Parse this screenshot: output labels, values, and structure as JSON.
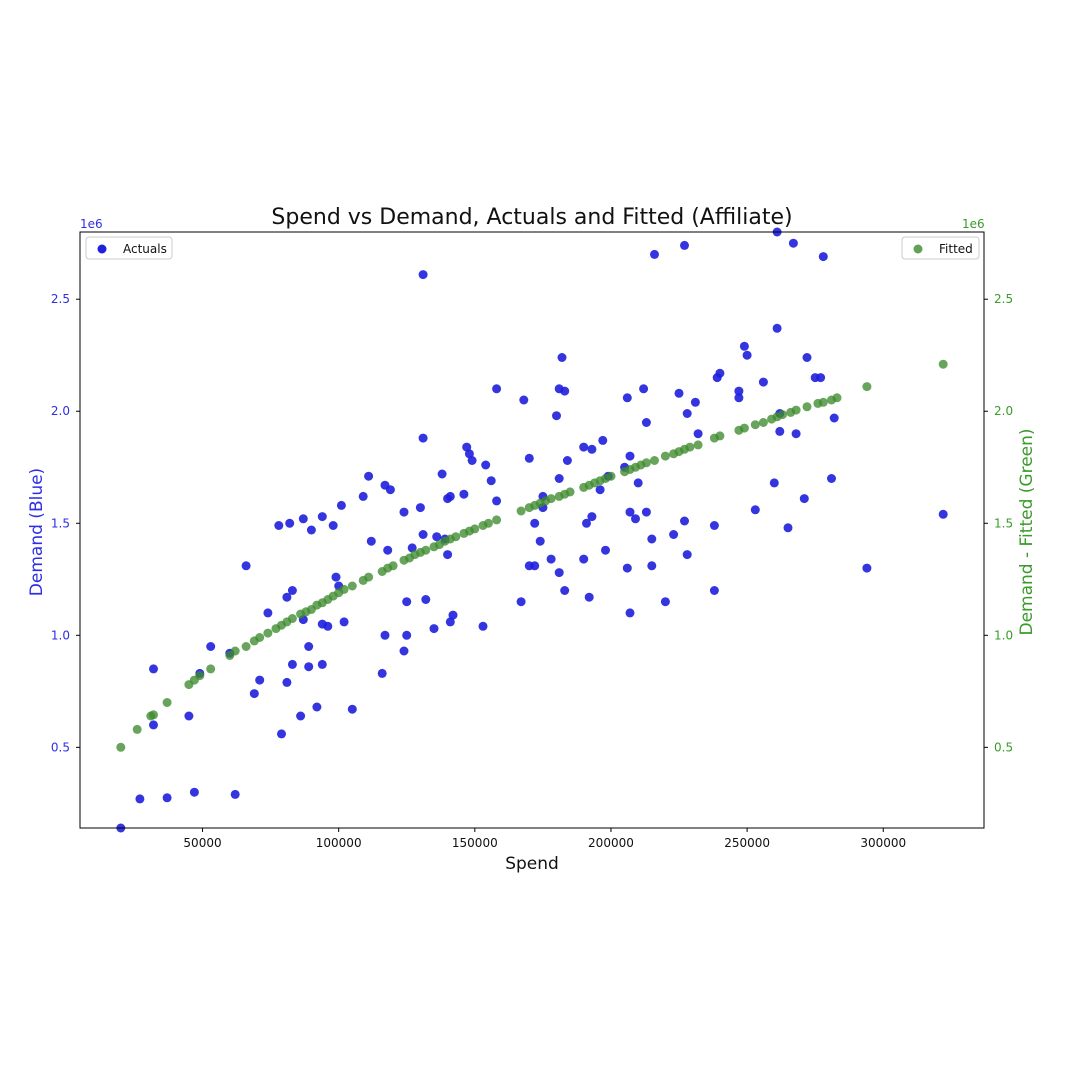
{
  "chart_data": {
    "type": "scatter",
    "title": "Spend vs Demand, Actuals and Fitted (Affiliate)",
    "xlabel": "Spend",
    "ylabel_left": "Demand (Blue)",
    "ylabel_right": "Demand - Fitted (Green)",
    "y_offset_text_left": "1e6",
    "y_offset_text_right": "1e6",
    "xlim": [
      5000,
      337000
    ],
    "ylim": [
      140000,
      2800000
    ],
    "x_ticks": [
      50000,
      100000,
      150000,
      200000,
      250000,
      300000
    ],
    "x_tick_labels": [
      "50000",
      "100000",
      "150000",
      "200000",
      "250000",
      "300000"
    ],
    "y_ticks": [
      500000,
      1000000,
      1500000,
      2000000,
      2500000
    ],
    "y_tick_labels": [
      "0.5",
      "1.0",
      "1.5",
      "2.0",
      "2.5"
    ],
    "grid": false,
    "legend_left": {
      "placement": "top-left"
    },
    "legend_right": {
      "placement": "top-right"
    },
    "colors": {
      "actuals": "#1f1fdd",
      "fitted": "#3d8a2e",
      "left_axis": "#2e2ee6",
      "right_axis": "#3a9a2a"
    },
    "series": [
      {
        "name": "Actuals",
        "axis": "left",
        "points": [
          [
            20000,
            140000
          ],
          [
            27000,
            270000
          ],
          [
            37000,
            275000
          ],
          [
            47000,
            300000
          ],
          [
            62000,
            290000
          ],
          [
            32000,
            600000
          ],
          [
            32000,
            850000
          ],
          [
            45000,
            640000
          ],
          [
            49000,
            830000
          ],
          [
            53000,
            950000
          ],
          [
            60000,
            920000
          ],
          [
            66000,
            1310000
          ],
          [
            69000,
            740000
          ],
          [
            71000,
            800000
          ],
          [
            74000,
            1100000
          ],
          [
            78000,
            1490000
          ],
          [
            79000,
            560000
          ],
          [
            81000,
            790000
          ],
          [
            81000,
            1170000
          ],
          [
            82000,
            1500000
          ],
          [
            83000,
            870000
          ],
          [
            83000,
            1200000
          ],
          [
            86000,
            640000
          ],
          [
            87000,
            1520000
          ],
          [
            87000,
            1070000
          ],
          [
            89000,
            950000
          ],
          [
            89000,
            860000
          ],
          [
            90000,
            1470000
          ],
          [
            92000,
            680000
          ],
          [
            94000,
            1050000
          ],
          [
            94000,
            870000
          ],
          [
            94000,
            1530000
          ],
          [
            96000,
            1040000
          ],
          [
            98000,
            1490000
          ],
          [
            99000,
            1260000
          ],
          [
            100000,
            1220000
          ],
          [
            101000,
            1580000
          ],
          [
            102000,
            1060000
          ],
          [
            105000,
            670000
          ],
          [
            109000,
            1620000
          ],
          [
            111000,
            1710000
          ],
          [
            112000,
            1420000
          ],
          [
            116000,
            830000
          ],
          [
            117000,
            1000000
          ],
          [
            117000,
            1670000
          ],
          [
            118000,
            1380000
          ],
          [
            119000,
            1650000
          ],
          [
            124000,
            930000
          ],
          [
            124000,
            1550000
          ],
          [
            125000,
            1150000
          ],
          [
            125000,
            1000000
          ],
          [
            127000,
            1390000
          ],
          [
            130000,
            1570000
          ],
          [
            131000,
            1450000
          ],
          [
            131000,
            1880000
          ],
          [
            131000,
            2610000
          ],
          [
            132000,
            1160000
          ],
          [
            135000,
            1030000
          ],
          [
            136000,
            1440000
          ],
          [
            138000,
            1720000
          ],
          [
            139000,
            1430000
          ],
          [
            140000,
            1360000
          ],
          [
            140000,
            1610000
          ],
          [
            141000,
            1620000
          ],
          [
            141000,
            1060000
          ],
          [
            142000,
            1090000
          ],
          [
            146000,
            1630000
          ],
          [
            147000,
            1840000
          ],
          [
            148000,
            1810000
          ],
          [
            149000,
            1780000
          ],
          [
            153000,
            1040000
          ],
          [
            154000,
            1760000
          ],
          [
            156000,
            1690000
          ],
          [
            158000,
            1600000
          ],
          [
            158000,
            2100000
          ],
          [
            167000,
            1150000
          ],
          [
            168000,
            2050000
          ],
          [
            170000,
            1790000
          ],
          [
            170000,
            1310000
          ],
          [
            172000,
            1310000
          ],
          [
            172000,
            1500000
          ],
          [
            174000,
            1420000
          ],
          [
            175000,
            1620000
          ],
          [
            175000,
            1570000
          ],
          [
            178000,
            1340000
          ],
          [
            180000,
            1980000
          ],
          [
            181000,
            1700000
          ],
          [
            181000,
            1280000
          ],
          [
            181000,
            2100000
          ],
          [
            182000,
            2240000
          ],
          [
            183000,
            2090000
          ],
          [
            183000,
            1200000
          ],
          [
            184000,
            1780000
          ],
          [
            190000,
            1340000
          ],
          [
            190000,
            1840000
          ],
          [
            191000,
            1500000
          ],
          [
            192000,
            1170000
          ],
          [
            193000,
            1530000
          ],
          [
            193000,
            1830000
          ],
          [
            196000,
            1650000
          ],
          [
            197000,
            1870000
          ],
          [
            198000,
            1380000
          ],
          [
            199000,
            1710000
          ],
          [
            205000,
            1750000
          ],
          [
            206000,
            2060000
          ],
          [
            206000,
            1300000
          ],
          [
            207000,
            1550000
          ],
          [
            207000,
            1800000
          ],
          [
            207000,
            1100000
          ],
          [
            209000,
            1520000
          ],
          [
            210000,
            1680000
          ],
          [
            212000,
            2100000
          ],
          [
            213000,
            1550000
          ],
          [
            213000,
            1950000
          ],
          [
            215000,
            1310000
          ],
          [
            215000,
            1430000
          ],
          [
            216000,
            2700000
          ],
          [
            220000,
            1150000
          ],
          [
            223000,
            1450000
          ],
          [
            225000,
            2080000
          ],
          [
            227000,
            2740000
          ],
          [
            227000,
            1510000
          ],
          [
            228000,
            1360000
          ],
          [
            228000,
            1990000
          ],
          [
            231000,
            2040000
          ],
          [
            232000,
            1900000
          ],
          [
            238000,
            1200000
          ],
          [
            238000,
            1490000
          ],
          [
            239000,
            2150000
          ],
          [
            240000,
            2170000
          ],
          [
            247000,
            2060000
          ],
          [
            247000,
            2090000
          ],
          [
            249000,
            2290000
          ],
          [
            250000,
            2250000
          ],
          [
            253000,
            1560000
          ],
          [
            256000,
            2130000
          ],
          [
            260000,
            1680000
          ],
          [
            261000,
            2370000
          ],
          [
            261000,
            2800000
          ],
          [
            262000,
            1910000
          ],
          [
            262000,
            1990000
          ],
          [
            265000,
            1480000
          ],
          [
            267000,
            2750000
          ],
          [
            268000,
            1900000
          ],
          [
            271000,
            1610000
          ],
          [
            272000,
            2240000
          ],
          [
            275000,
            2150000
          ],
          [
            277000,
            2150000
          ],
          [
            278000,
            2690000
          ],
          [
            281000,
            1700000
          ],
          [
            282000,
            1970000
          ],
          [
            294000,
            1300000
          ],
          [
            322000,
            1540000
          ]
        ]
      },
      {
        "name": "Fitted",
        "axis": "right",
        "points": [
          [
            20000,
            500000
          ],
          [
            26000,
            580000
          ],
          [
            31000,
            640000
          ],
          [
            32000,
            645000
          ],
          [
            37000,
            700000
          ],
          [
            45000,
            780000
          ],
          [
            47000,
            800000
          ],
          [
            49000,
            820000
          ],
          [
            53000,
            850000
          ],
          [
            60000,
            910000
          ],
          [
            62000,
            930000
          ],
          [
            66000,
            950000
          ],
          [
            69000,
            975000
          ],
          [
            71000,
            990000
          ],
          [
            74000,
            1010000
          ],
          [
            77000,
            1030000
          ],
          [
            79000,
            1045000
          ],
          [
            81000,
            1060000
          ],
          [
            83000,
            1075000
          ],
          [
            86000,
            1095000
          ],
          [
            88000,
            1105000
          ],
          [
            90000,
            1115000
          ],
          [
            92000,
            1135000
          ],
          [
            94000,
            1145000
          ],
          [
            96000,
            1160000
          ],
          [
            98000,
            1175000
          ],
          [
            100000,
            1190000
          ],
          [
            102000,
            1205000
          ],
          [
            105000,
            1220000
          ],
          [
            109000,
            1245000
          ],
          [
            111000,
            1260000
          ],
          [
            116000,
            1285000
          ],
          [
            118000,
            1300000
          ],
          [
            120000,
            1310000
          ],
          [
            124000,
            1335000
          ],
          [
            126000,
            1345000
          ],
          [
            128000,
            1360000
          ],
          [
            130000,
            1370000
          ],
          [
            132000,
            1380000
          ],
          [
            135000,
            1395000
          ],
          [
            137000,
            1405000
          ],
          [
            139000,
            1420000
          ],
          [
            141000,
            1430000
          ],
          [
            143000,
            1440000
          ],
          [
            146000,
            1455000
          ],
          [
            148000,
            1465000
          ],
          [
            150000,
            1475000
          ],
          [
            153000,
            1490000
          ],
          [
            155000,
            1500000
          ],
          [
            158000,
            1515000
          ],
          [
            167000,
            1555000
          ],
          [
            170000,
            1570000
          ],
          [
            172000,
            1580000
          ],
          [
            174000,
            1590000
          ],
          [
            176000,
            1600000
          ],
          [
            178000,
            1610000
          ],
          [
            181000,
            1620000
          ],
          [
            183000,
            1630000
          ],
          [
            185000,
            1640000
          ],
          [
            190000,
            1660000
          ],
          [
            192000,
            1670000
          ],
          [
            194000,
            1680000
          ],
          [
            196000,
            1690000
          ],
          [
            198000,
            1700000
          ],
          [
            200000,
            1710000
          ],
          [
            205000,
            1730000
          ],
          [
            207000,
            1740000
          ],
          [
            209000,
            1750000
          ],
          [
            211000,
            1760000
          ],
          [
            213000,
            1770000
          ],
          [
            216000,
            1780000
          ],
          [
            220000,
            1800000
          ],
          [
            223000,
            1810000
          ],
          [
            225000,
            1820000
          ],
          [
            227000,
            1830000
          ],
          [
            229000,
            1840000
          ],
          [
            232000,
            1850000
          ],
          [
            238000,
            1880000
          ],
          [
            240000,
            1890000
          ],
          [
            247000,
            1915000
          ],
          [
            249000,
            1925000
          ],
          [
            253000,
            1940000
          ],
          [
            256000,
            1950000
          ],
          [
            259000,
            1965000
          ],
          [
            261000,
            1975000
          ],
          [
            263000,
            1985000
          ],
          [
            266000,
            1995000
          ],
          [
            268000,
            2005000
          ],
          [
            272000,
            2020000
          ],
          [
            276000,
            2035000
          ],
          [
            278000,
            2040000
          ],
          [
            281000,
            2050000
          ],
          [
            283000,
            2060000
          ],
          [
            294000,
            2110000
          ],
          [
            322000,
            2210000
          ]
        ]
      }
    ]
  }
}
